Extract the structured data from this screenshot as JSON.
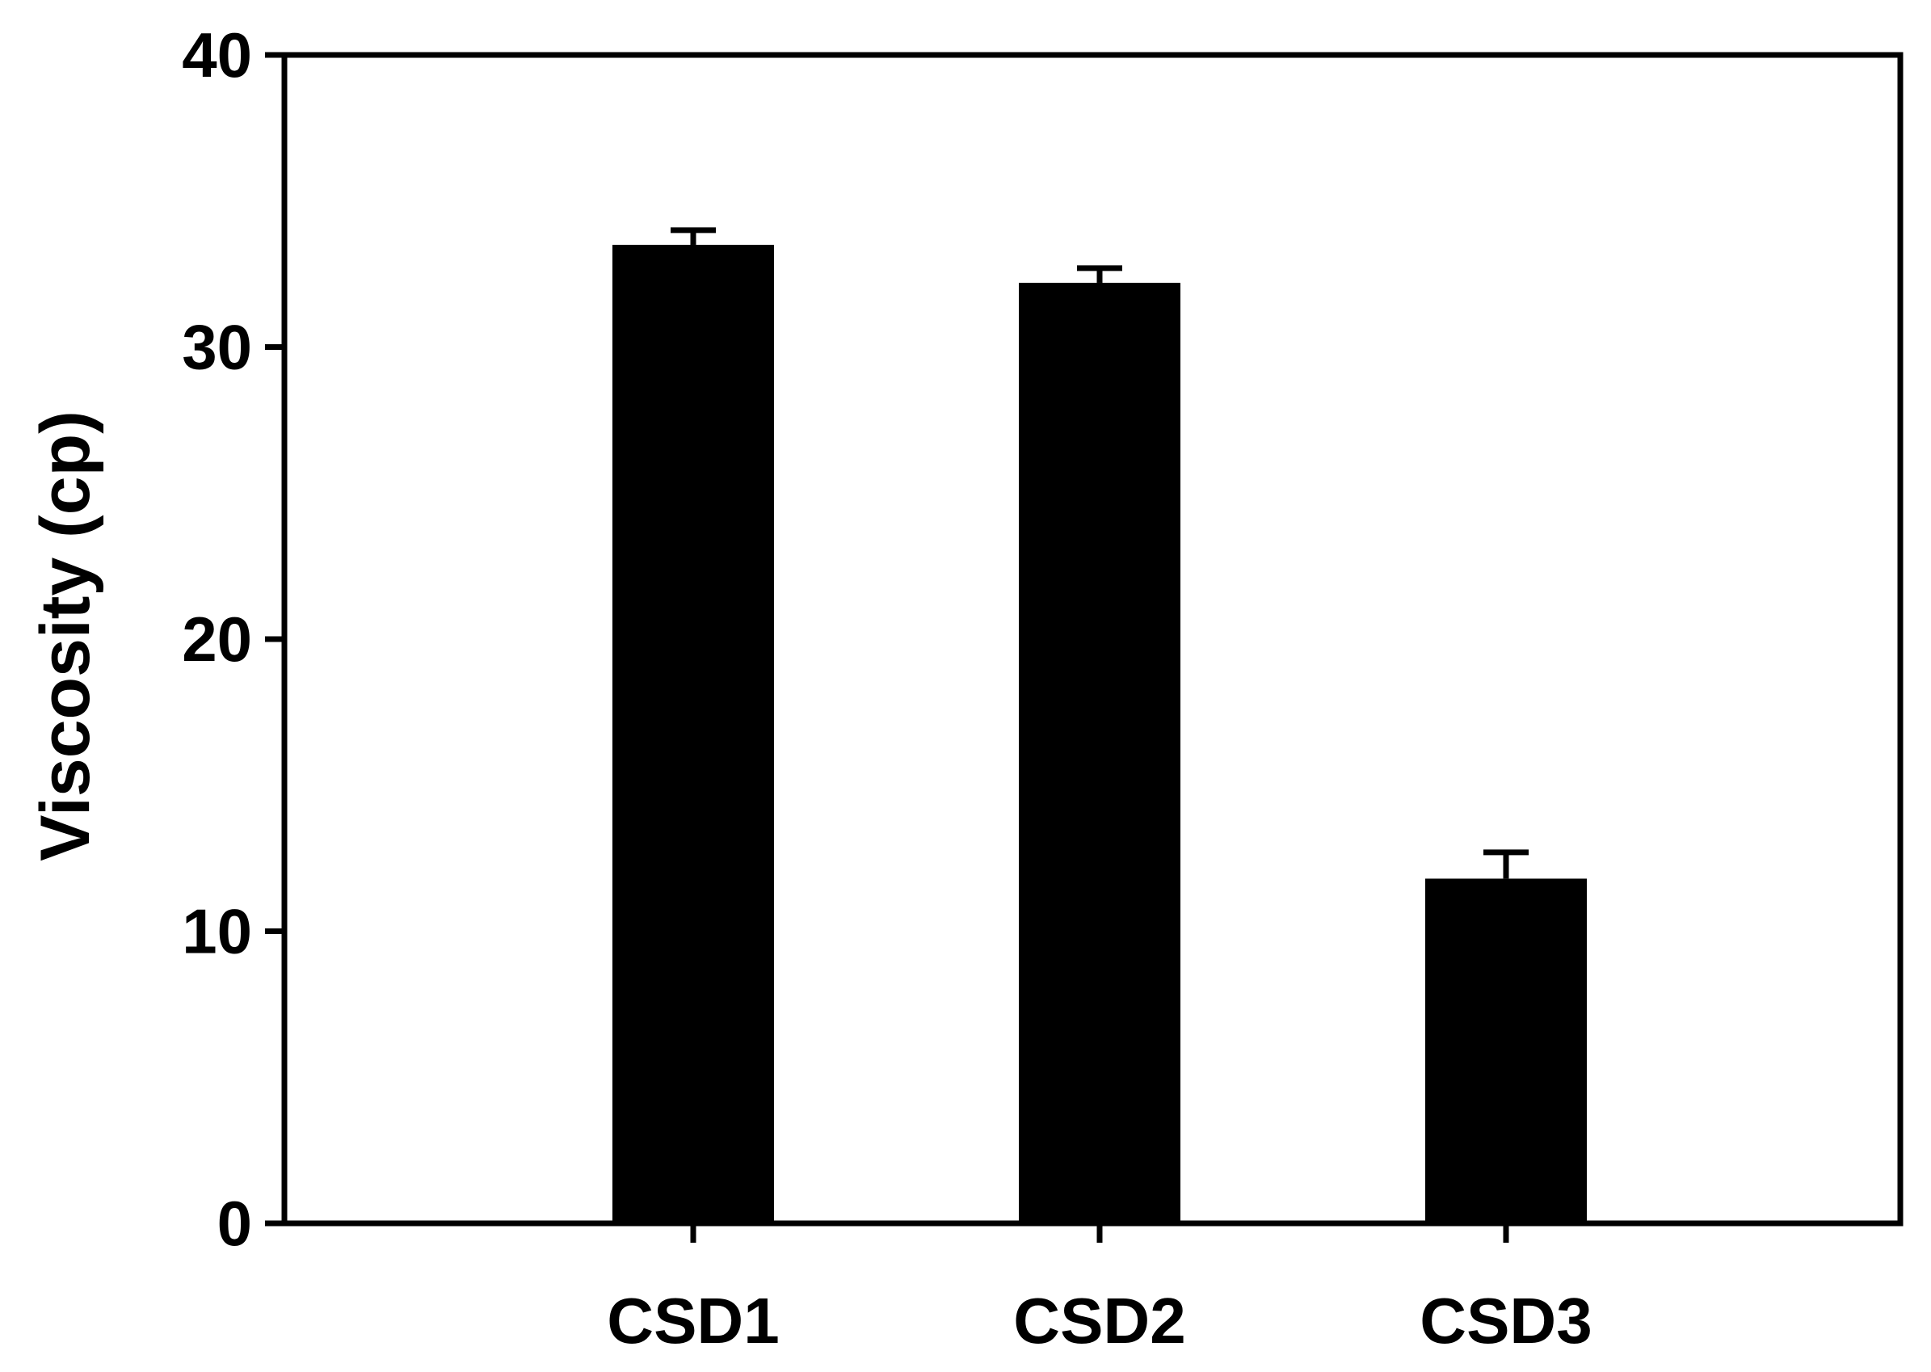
{
  "chart_data": {
    "type": "bar",
    "title": "",
    "xlabel": "",
    "ylabel": "Viscosity (cp)",
    "categories": [
      "CSD1",
      "CSD2",
      "CSD3"
    ],
    "values": [
      33.5,
      32.2,
      11.8
    ],
    "error_bars": [
      0.5,
      0.5,
      0.9
    ],
    "ylim": [
      0,
      40
    ],
    "yticks": [
      0,
      10,
      20,
      30,
      40
    ],
    "ytick_labels": [
      "0",
      "10",
      "20",
      "30",
      "40"
    ],
    "grid": false,
    "legend": "none",
    "colors": {
      "bar": "#000000",
      "axis": "#000000",
      "background": "#ffffff"
    }
  }
}
